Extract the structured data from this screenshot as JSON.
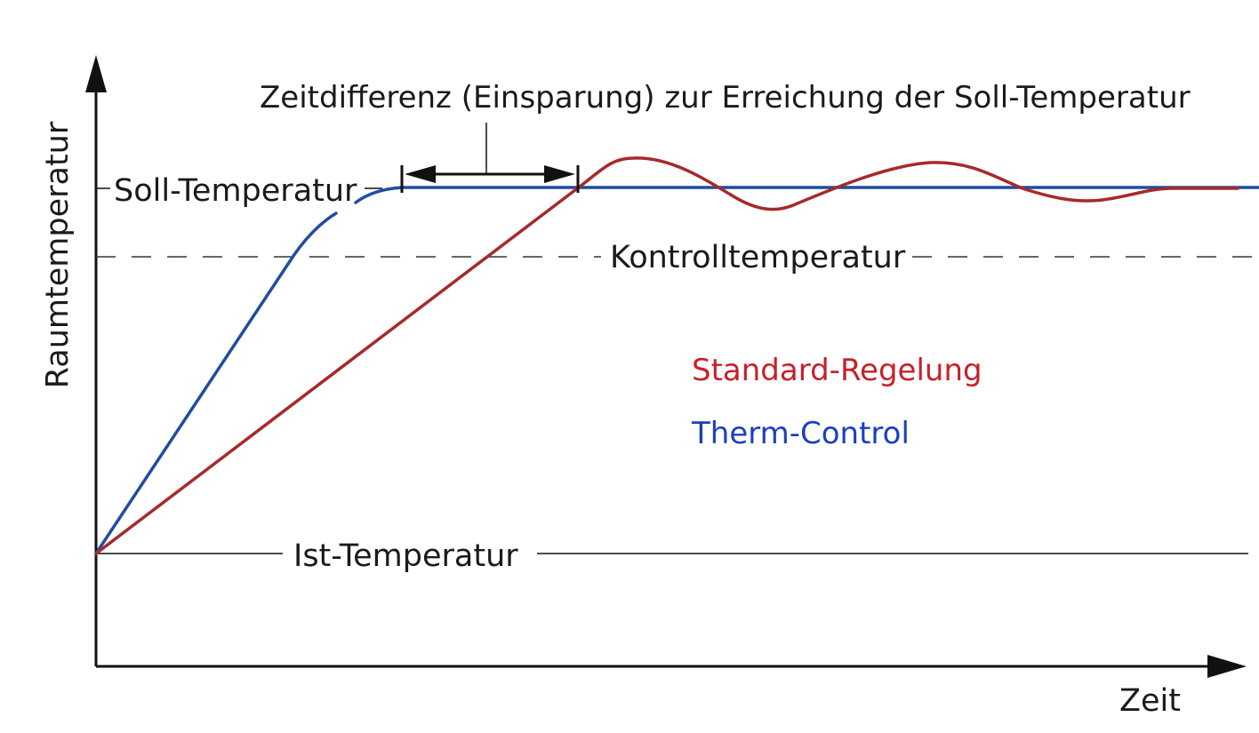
{
  "chart_data": {
    "type": "line",
    "title": "Zeitdifferenz (Einsparung) zur Erreichung der Soll-Temperatur",
    "xlabel": "Zeit",
    "ylabel": "Raumtemperatur",
    "reference_lines": {
      "soll": "Soll-Temperatur",
      "kontroll": "Kontrolltemperatur",
      "ist": "Ist-Temperatur"
    },
    "series": [
      {
        "name": "Standard-Regelung",
        "color": "#a52a2a"
      },
      {
        "name": "Therm-Control",
        "color": "#1f4e9e"
      }
    ],
    "legend_colors": {
      "standard": "#c8202a",
      "therm": "#1b3fbf"
    }
  }
}
